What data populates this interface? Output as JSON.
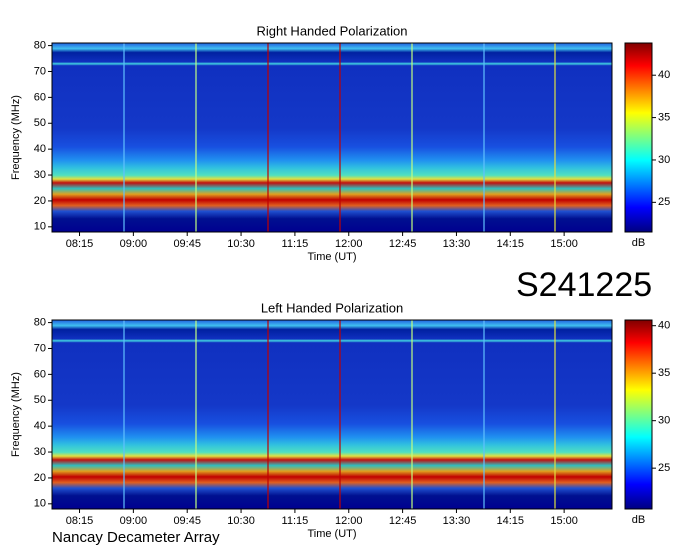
{
  "chart_data": [
    {
      "type": "spectrogram",
      "title": "Right Handed Polarization",
      "ylabel": "Frequency (MHz)",
      "xlabel": "Time (UT)",
      "ylim": [
        8,
        81
      ],
      "yticks": [
        10,
        20,
        30,
        40,
        50,
        60,
        70,
        80
      ],
      "xlim": [
        472,
        940
      ],
      "xticks": [
        {
          "value": 495,
          "label": "08:15"
        },
        {
          "value": 540,
          "label": "09:00"
        },
        {
          "value": 585,
          "label": "09:45"
        },
        {
          "value": 630,
          "label": "10:30"
        },
        {
          "value": 675,
          "label": "11:15"
        },
        {
          "value": 720,
          "label": "12:00"
        },
        {
          "value": 765,
          "label": "12:45"
        },
        {
          "value": 810,
          "label": "13:30"
        },
        {
          "value": 855,
          "label": "14:15"
        },
        {
          "value": 900,
          "label": "15:00"
        }
      ],
      "colorbar": {
        "label": "dB",
        "lim": [
          21.5,
          43.8
        ],
        "ticks": [
          25,
          30,
          35,
          40
        ]
      }
    },
    {
      "type": "spectrogram",
      "title": "Left Handed Polarization",
      "ylabel": "Frequency (MHz)",
      "xlabel": "Time (UT)",
      "ylim": [
        8,
        81
      ],
      "yticks": [
        10,
        20,
        30,
        40,
        50,
        60,
        70,
        80
      ],
      "xlim": [
        472,
        940
      ],
      "xticks": [
        {
          "value": 495,
          "label": "08:15"
        },
        {
          "value": 540,
          "label": "09:00"
        },
        {
          "value": 585,
          "label": "09:45"
        },
        {
          "value": 630,
          "label": "10:30"
        },
        {
          "value": 675,
          "label": "11:15"
        },
        {
          "value": 720,
          "label": "12:00"
        },
        {
          "value": 765,
          "label": "12:45"
        },
        {
          "value": 810,
          "label": "13:30"
        },
        {
          "value": 855,
          "label": "14:15"
        },
        {
          "value": 900,
          "label": "15:00"
        }
      ],
      "colorbar": {
        "label": "dB",
        "lim": [
          20.7,
          40.6
        ],
        "ticks": [
          25,
          30,
          35,
          40
        ]
      }
    }
  ],
  "annotations": [
    "S241225",
    "Nancay Decameter Array"
  ]
}
